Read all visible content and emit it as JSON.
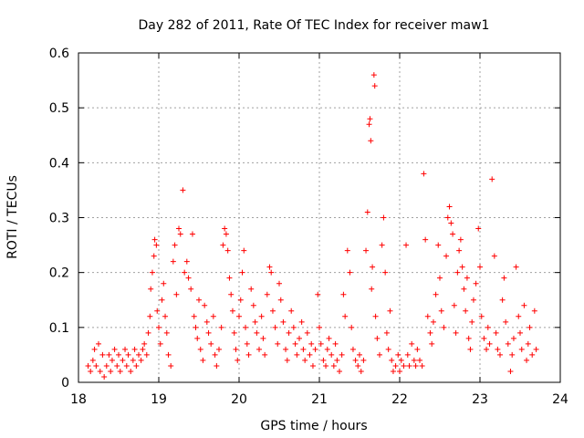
{
  "chart_data": {
    "type": "scatter",
    "title": "Day 282 of 2011, Rate Of TEC Index for receiver maw1",
    "xlabel": "GPS time / hours",
    "ylabel": "ROTI / TECUs",
    "xlim": [
      18,
      24
    ],
    "ylim": [
      0,
      0.6
    ],
    "xticks": [
      18,
      19,
      20,
      21,
      22,
      23,
      24
    ],
    "yticks": [
      0,
      0.1,
      0.2,
      0.3,
      0.4,
      0.5,
      0.6
    ],
    "xtick_labels": [
      "18",
      "19",
      "20",
      "21",
      "22",
      "23",
      "24"
    ],
    "ytick_labels": [
      "0",
      "0.1",
      "0.2",
      "0.3",
      "0.4",
      "0.5",
      "0.6"
    ],
    "grid": true,
    "marker": "plus",
    "color": "#ff0000",
    "series": [
      {
        "points": [
          [
            18.12,
            0.03
          ],
          [
            18.15,
            0.02
          ],
          [
            18.18,
            0.04
          ],
          [
            18.2,
            0.06
          ],
          [
            18.22,
            0.03
          ],
          [
            18.25,
            0.07
          ],
          [
            18.27,
            0.02
          ],
          [
            18.3,
            0.05
          ],
          [
            18.32,
            0.01
          ],
          [
            18.35,
            0.03
          ],
          [
            18.38,
            0.05
          ],
          [
            18.4,
            0.02
          ],
          [
            18.42,
            0.04
          ],
          [
            18.45,
            0.06
          ],
          [
            18.48,
            0.03
          ],
          [
            18.5,
            0.05
          ],
          [
            18.52,
            0.02
          ],
          [
            18.55,
            0.04
          ],
          [
            18.58,
            0.06
          ],
          [
            18.6,
            0.03
          ],
          [
            18.62,
            0.05
          ],
          [
            18.65,
            0.02
          ],
          [
            18.68,
            0.04
          ],
          [
            18.7,
            0.06
          ],
          [
            18.72,
            0.03
          ],
          [
            18.75,
            0.05
          ],
          [
            18.78,
            0.04
          ],
          [
            18.8,
            0.06
          ],
          [
            18.82,
            0.07
          ],
          [
            18.85,
            0.05
          ],
          [
            18.87,
            0.09
          ],
          [
            18.89,
            0.12
          ],
          [
            18.9,
            0.17
          ],
          [
            18.92,
            0.2
          ],
          [
            18.94,
            0.23
          ],
          [
            18.95,
            0.26
          ],
          [
            18.97,
            0.25
          ],
          [
            18.98,
            0.13
          ],
          [
            19.0,
            0.1
          ],
          [
            19.02,
            0.07
          ],
          [
            19.04,
            0.15
          ],
          [
            19.06,
            0.18
          ],
          [
            19.08,
            0.12
          ],
          [
            19.1,
            0.09
          ],
          [
            19.12,
            0.05
          ],
          [
            19.15,
            0.03
          ],
          [
            19.18,
            0.22
          ],
          [
            19.2,
            0.25
          ],
          [
            19.22,
            0.16
          ],
          [
            19.25,
            0.28
          ],
          [
            19.27,
            0.27
          ],
          [
            19.3,
            0.35
          ],
          [
            19.32,
            0.2
          ],
          [
            19.35,
            0.22
          ],
          [
            19.37,
            0.19
          ],
          [
            19.4,
            0.17
          ],
          [
            19.42,
            0.27
          ],
          [
            19.44,
            0.12
          ],
          [
            19.46,
            0.1
          ],
          [
            19.48,
            0.08
          ],
          [
            19.5,
            0.15
          ],
          [
            19.52,
            0.06
          ],
          [
            19.55,
            0.04
          ],
          [
            19.57,
            0.14
          ],
          [
            19.6,
            0.11
          ],
          [
            19.62,
            0.09
          ],
          [
            19.65,
            0.07
          ],
          [
            19.68,
            0.12
          ],
          [
            19.7,
            0.05
          ],
          [
            19.72,
            0.03
          ],
          [
            19.75,
            0.06
          ],
          [
            19.78,
            0.1
          ],
          [
            19.8,
            0.25
          ],
          [
            19.82,
            0.28
          ],
          [
            19.84,
            0.27
          ],
          [
            19.86,
            0.24
          ],
          [
            19.88,
            0.19
          ],
          [
            19.9,
            0.16
          ],
          [
            19.92,
            0.13
          ],
          [
            19.94,
            0.09
          ],
          [
            19.96,
            0.06
          ],
          [
            19.98,
            0.04
          ],
          [
            20.0,
            0.12
          ],
          [
            20.02,
            0.15
          ],
          [
            20.04,
            0.2
          ],
          [
            20.06,
            0.24
          ],
          [
            20.08,
            0.1
          ],
          [
            20.1,
            0.07
          ],
          [
            20.12,
            0.05
          ],
          [
            20.15,
            0.17
          ],
          [
            20.18,
            0.14
          ],
          [
            20.2,
            0.11
          ],
          [
            20.22,
            0.09
          ],
          [
            20.25,
            0.06
          ],
          [
            20.28,
            0.12
          ],
          [
            20.3,
            0.08
          ],
          [
            20.32,
            0.05
          ],
          [
            20.35,
            0.16
          ],
          [
            20.38,
            0.21
          ],
          [
            20.4,
            0.2
          ],
          [
            20.42,
            0.13
          ],
          [
            20.45,
            0.1
          ],
          [
            20.48,
            0.07
          ],
          [
            20.5,
            0.18
          ],
          [
            20.52,
            0.15
          ],
          [
            20.55,
            0.11
          ],
          [
            20.58,
            0.06
          ],
          [
            20.6,
            0.04
          ],
          [
            20.62,
            0.09
          ],
          [
            20.65,
            0.13
          ],
          [
            20.68,
            0.1
          ],
          [
            20.7,
            0.07
          ],
          [
            20.72,
            0.05
          ],
          [
            20.75,
            0.08
          ],
          [
            20.78,
            0.11
          ],
          [
            20.8,
            0.06
          ],
          [
            20.82,
            0.04
          ],
          [
            20.85,
            0.09
          ],
          [
            20.88,
            0.05
          ],
          [
            20.9,
            0.07
          ],
          [
            20.92,
            0.03
          ],
          [
            20.95,
            0.06
          ],
          [
            20.98,
            0.16
          ],
          [
            21.0,
            0.1
          ],
          [
            21.02,
            0.07
          ],
          [
            21.05,
            0.04
          ],
          [
            21.08,
            0.03
          ],
          [
            21.1,
            0.06
          ],
          [
            21.12,
            0.08
          ],
          [
            21.15,
            0.05
          ],
          [
            21.18,
            0.03
          ],
          [
            21.2,
            0.07
          ],
          [
            21.22,
            0.04
          ],
          [
            21.25,
            0.02
          ],
          [
            21.28,
            0.05
          ],
          [
            21.3,
            0.16
          ],
          [
            21.32,
            0.12
          ],
          [
            21.35,
            0.24
          ],
          [
            21.38,
            0.2
          ],
          [
            21.4,
            0.1
          ],
          [
            21.42,
            0.06
          ],
          [
            21.45,
            0.04
          ],
          [
            21.48,
            0.03
          ],
          [
            21.5,
            0.05
          ],
          [
            21.52,
            0.02
          ],
          [
            21.55,
            0.04
          ],
          [
            21.58,
            0.24
          ],
          [
            21.6,
            0.31
          ],
          [
            21.62,
            0.47
          ],
          [
            21.63,
            0.48
          ],
          [
            21.64,
            0.44
          ],
          [
            21.65,
            0.17
          ],
          [
            21.66,
            0.21
          ],
          [
            21.68,
            0.56
          ],
          [
            21.69,
            0.54
          ],
          [
            21.7,
            0.12
          ],
          [
            21.72,
            0.08
          ],
          [
            21.75,
            0.05
          ],
          [
            21.78,
            0.25
          ],
          [
            21.8,
            0.3
          ],
          [
            21.82,
            0.2
          ],
          [
            21.84,
            0.09
          ],
          [
            21.86,
            0.06
          ],
          [
            21.88,
            0.13
          ],
          [
            21.9,
            0.04
          ],
          [
            21.92,
            0.02
          ],
          [
            21.95,
            0.03
          ],
          [
            21.98,
            0.05
          ],
          [
            22.0,
            0.02
          ],
          [
            22.02,
            0.04
          ],
          [
            22.05,
            0.03
          ],
          [
            22.08,
            0.25
          ],
          [
            22.1,
            0.05
          ],
          [
            22.12,
            0.03
          ],
          [
            22.15,
            0.07
          ],
          [
            22.18,
            0.04
          ],
          [
            22.2,
            0.03
          ],
          [
            22.22,
            0.06
          ],
          [
            22.25,
            0.04
          ],
          [
            22.28,
            0.03
          ],
          [
            22.3,
            0.38
          ],
          [
            22.32,
            0.26
          ],
          [
            22.35,
            0.12
          ],
          [
            22.38,
            0.09
          ],
          [
            22.4,
            0.07
          ],
          [
            22.42,
            0.11
          ],
          [
            22.45,
            0.16
          ],
          [
            22.48,
            0.25
          ],
          [
            22.5,
            0.19
          ],
          [
            22.52,
            0.13
          ],
          [
            22.55,
            0.1
          ],
          [
            22.58,
            0.23
          ],
          [
            22.6,
            0.3
          ],
          [
            22.62,
            0.32
          ],
          [
            22.64,
            0.29
          ],
          [
            22.66,
            0.27
          ],
          [
            22.68,
            0.14
          ],
          [
            22.7,
            0.09
          ],
          [
            22.72,
            0.2
          ],
          [
            22.74,
            0.24
          ],
          [
            22.76,
            0.26
          ],
          [
            22.78,
            0.21
          ],
          [
            22.8,
            0.17
          ],
          [
            22.82,
            0.13
          ],
          [
            22.84,
            0.19
          ],
          [
            22.86,
            0.08
          ],
          [
            22.88,
            0.06
          ],
          [
            22.9,
            0.11
          ],
          [
            22.92,
            0.15
          ],
          [
            22.95,
            0.18
          ],
          [
            22.98,
            0.28
          ],
          [
            23.0,
            0.21
          ],
          [
            23.02,
            0.12
          ],
          [
            23.05,
            0.08
          ],
          [
            23.08,
            0.06
          ],
          [
            23.1,
            0.1
          ],
          [
            23.12,
            0.07
          ],
          [
            23.15,
            0.37
          ],
          [
            23.18,
            0.23
          ],
          [
            23.2,
            0.09
          ],
          [
            23.22,
            0.06
          ],
          [
            23.25,
            0.05
          ],
          [
            23.28,
            0.15
          ],
          [
            23.3,
            0.19
          ],
          [
            23.32,
            0.11
          ],
          [
            23.35,
            0.07
          ],
          [
            23.38,
            0.02
          ],
          [
            23.4,
            0.05
          ],
          [
            23.42,
            0.08
          ],
          [
            23.45,
            0.21
          ],
          [
            23.48,
            0.12
          ],
          [
            23.5,
            0.09
          ],
          [
            23.52,
            0.06
          ],
          [
            23.55,
            0.14
          ],
          [
            23.58,
            0.04
          ],
          [
            23.6,
            0.07
          ],
          [
            23.62,
            0.1
          ],
          [
            23.65,
            0.05
          ],
          [
            23.68,
            0.13
          ],
          [
            23.7,
            0.06
          ]
        ]
      }
    ]
  }
}
